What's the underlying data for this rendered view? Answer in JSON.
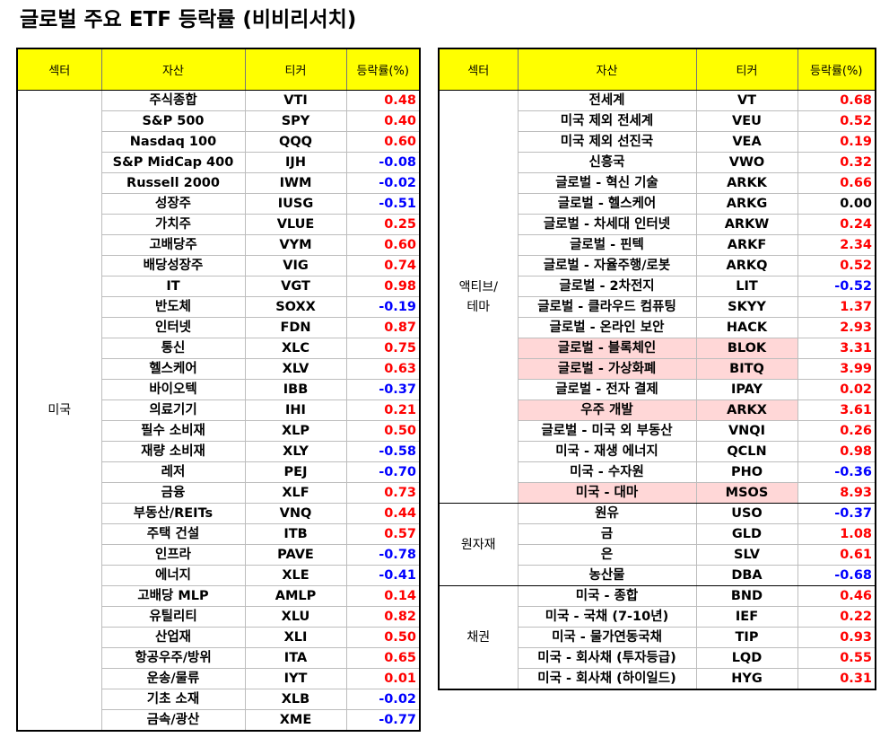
{
  "title": "글로벌 주요 ETF 등락률 (비비리서치)",
  "colors": {
    "header_bg": "#ffff00",
    "positive": "#ff0000",
    "negative": "#0000ff",
    "zero": "#000000",
    "highlight_row": "#ffd7d7"
  },
  "headers": {
    "sector": "섹터",
    "asset": "자산",
    "ticker": "티커",
    "change": "등락률(%)"
  },
  "left_table": {
    "groups": [
      {
        "sector": "미국",
        "rows": [
          {
            "name": "주식종합",
            "ticker": "VTI",
            "change": "0.48"
          },
          {
            "name": "S&P 500",
            "ticker": "SPY",
            "change": "0.40"
          },
          {
            "name": "Nasdaq 100",
            "ticker": "QQQ",
            "change": "0.60"
          },
          {
            "name": "S&P MidCap 400",
            "ticker": "IJH",
            "change": "-0.08"
          },
          {
            "name": "Russell 2000",
            "ticker": "IWM",
            "change": "-0.02"
          },
          {
            "name": "성장주",
            "ticker": "IUSG",
            "change": "-0.51"
          },
          {
            "name": "가치주",
            "ticker": "VLUE",
            "change": "0.25"
          },
          {
            "name": "고배당주",
            "ticker": "VYM",
            "change": "0.60"
          },
          {
            "name": "배당성장주",
            "ticker": "VIG",
            "change": "0.74"
          },
          {
            "name": "IT",
            "ticker": "VGT",
            "change": "0.98"
          },
          {
            "name": "반도체",
            "ticker": "SOXX",
            "change": "-0.19"
          },
          {
            "name": "인터넷",
            "ticker": "FDN",
            "change": "0.87"
          },
          {
            "name": "통신",
            "ticker": "XLC",
            "change": "0.75"
          },
          {
            "name": "헬스케어",
            "ticker": "XLV",
            "change": "0.63"
          },
          {
            "name": "바이오텍",
            "ticker": "IBB",
            "change": "-0.37"
          },
          {
            "name": "의료기기",
            "ticker": "IHI",
            "change": "0.21"
          },
          {
            "name": "필수 소비재",
            "ticker": "XLP",
            "change": "0.50"
          },
          {
            "name": "재량 소비재",
            "ticker": "XLY",
            "change": "-0.58"
          },
          {
            "name": "레저",
            "ticker": "PEJ",
            "change": "-0.70"
          },
          {
            "name": "금융",
            "ticker": "XLF",
            "change": "0.73"
          },
          {
            "name": "부동산/REITs",
            "ticker": "VNQ",
            "change": "0.44"
          },
          {
            "name": "주택 건설",
            "ticker": "ITB",
            "change": "0.57"
          },
          {
            "name": "인프라",
            "ticker": "PAVE",
            "change": "-0.78"
          },
          {
            "name": "에너지",
            "ticker": "XLE",
            "change": "-0.41"
          },
          {
            "name": "고배당 MLP",
            "ticker": "AMLP",
            "change": "0.14"
          },
          {
            "name": "유틸리티",
            "ticker": "XLU",
            "change": "0.82"
          },
          {
            "name": "산업재",
            "ticker": "XLI",
            "change": "0.50"
          },
          {
            "name": "항공우주/방위",
            "ticker": "ITA",
            "change": "0.65"
          },
          {
            "name": "운송/물류",
            "ticker": "IYT",
            "change": "0.01"
          },
          {
            "name": "기초 소재",
            "ticker": "XLB",
            "change": "-0.02"
          },
          {
            "name": "금속/광산",
            "ticker": "XME",
            "change": "-0.77"
          }
        ]
      }
    ]
  },
  "right_table": {
    "groups": [
      {
        "sector": "액티브/\n테마",
        "rows": [
          {
            "name": "전세계",
            "ticker": "VT",
            "change": "0.68"
          },
          {
            "name": "미국 제외 전세계",
            "ticker": "VEU",
            "change": "0.52"
          },
          {
            "name": "미국 제외 선진국",
            "ticker": "VEA",
            "change": "0.19"
          },
          {
            "name": "신흥국",
            "ticker": "VWO",
            "change": "0.32"
          },
          {
            "name": "글로벌 - 혁신 기술",
            "ticker": "ARKK",
            "change": "0.66"
          },
          {
            "name": "글로벌 - 헬스케어",
            "ticker": "ARKG",
            "change": "0.00"
          },
          {
            "name": "글로벌 - 차세대 인터넷",
            "ticker": "ARKW",
            "change": "0.24"
          },
          {
            "name": "글로벌 - 핀텍",
            "ticker": "ARKF",
            "change": "2.34"
          },
          {
            "name": "글로벌 - 자율주행/로봇",
            "ticker": "ARKQ",
            "change": "0.52"
          },
          {
            "name": "글로벌 - 2차전지",
            "ticker": "LIT",
            "change": "-0.52"
          },
          {
            "name": "글로벌 - 클라우드 컴퓨팅",
            "ticker": "SKYY",
            "change": "1.37"
          },
          {
            "name": "글로벌 - 온라인 보안",
            "ticker": "HACK",
            "change": "2.93"
          },
          {
            "name": "글로벌 - 블록체인",
            "ticker": "BLOK",
            "change": "3.31",
            "highlight": true
          },
          {
            "name": "글로벌 - 가상화폐",
            "ticker": "BITQ",
            "change": "3.99",
            "highlight": true
          },
          {
            "name": "글로벌 - 전자 결제",
            "ticker": "IPAY",
            "change": "0.02"
          },
          {
            "name": "우주 개발",
            "ticker": "ARKX",
            "change": "3.61",
            "highlight": true
          },
          {
            "name": "글로벌 - 미국 외 부동산",
            "ticker": "VNQI",
            "change": "0.26"
          },
          {
            "name": "미국 - 재생 에너지",
            "ticker": "QCLN",
            "change": "0.98"
          },
          {
            "name": "미국 - 수자원",
            "ticker": "PHO",
            "change": "-0.36"
          },
          {
            "name": "미국 - 대마",
            "ticker": "MSOS",
            "change": "8.93",
            "highlight": true
          }
        ]
      },
      {
        "sector": "원자재",
        "rows": [
          {
            "name": "원유",
            "ticker": "USO",
            "change": "-0.37"
          },
          {
            "name": "금",
            "ticker": "GLD",
            "change": "1.08"
          },
          {
            "name": "은",
            "ticker": "SLV",
            "change": "0.61"
          },
          {
            "name": "농산물",
            "ticker": "DBA",
            "change": "-0.68"
          }
        ]
      },
      {
        "sector": "채권",
        "rows": [
          {
            "name": "미국 - 종합",
            "ticker": "BND",
            "change": "0.46"
          },
          {
            "name": "미국 - 국채 (7-10년)",
            "ticker": "IEF",
            "change": "0.22"
          },
          {
            "name": "미국 - 물가연동국채",
            "ticker": "TIP",
            "change": "0.93"
          },
          {
            "name": "미국 - 회사채 (투자등급)",
            "ticker": "LQD",
            "change": "0.55"
          },
          {
            "name": "미국 - 회사채 (하이일드)",
            "ticker": "HYG",
            "change": "0.31"
          }
        ]
      }
    ]
  }
}
